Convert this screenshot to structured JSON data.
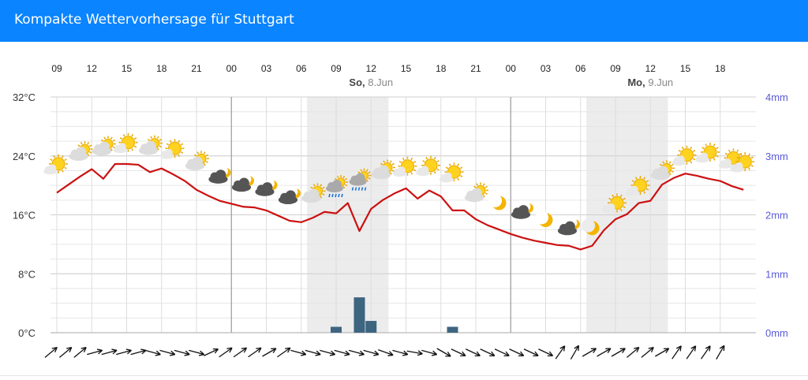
{
  "header": {
    "title": "Kompakte Wettervorhersage für Stuttgart"
  },
  "colors": {
    "header_bg": "#0a84ff",
    "temp_line": "#cc1111",
    "precip_bar": "#3d6580",
    "night_band": "#ececec",
    "grid": "#dddddd",
    "right_axis": "#5a5ad8"
  },
  "chart_data": {
    "type": "line",
    "hour_ticks": [
      "09",
      "12",
      "15",
      "18",
      "21",
      "00",
      "03",
      "06",
      "09",
      "12",
      "15",
      "18",
      "21",
      "00",
      "03",
      "06",
      "09",
      "12",
      "15",
      "18"
    ],
    "day_labels": [
      {
        "day": "So,",
        "date": "8.Jun",
        "tick_index": 9
      },
      {
        "day": "Mo,",
        "date": "9.Jun",
        "tick_index": 17
      }
    ],
    "left_axis": {
      "ticks": [
        "0°C",
        "8°C",
        "16°C",
        "24°C",
        "32°C"
      ],
      "ylim": [
        0,
        32
      ]
    },
    "right_axis": {
      "ticks": [
        "0mm",
        "1mm",
        "2mm",
        "3mm",
        "4mm"
      ],
      "ylim": [
        0,
        4
      ]
    },
    "grid": true,
    "night_bands": [
      [
        21.5,
        28.5
      ],
      [
        45.5,
        52.5
      ]
    ],
    "temperature": {
      "x": [
        0,
        1,
        2,
        3,
        4,
        5,
        6,
        7,
        8,
        9,
        10,
        11,
        12,
        13,
        14,
        15,
        16,
        17,
        18,
        19,
        20,
        21,
        22,
        23,
        24,
        25,
        26,
        27,
        28,
        29,
        30,
        31,
        32,
        33,
        34,
        35,
        36,
        37,
        38,
        39,
        40,
        41,
        42,
        43,
        44,
        45,
        46,
        47,
        48,
        49,
        50,
        51,
        52,
        53,
        54,
        55,
        56,
        57,
        58,
        59
      ],
      "values": [
        19.0,
        20.1,
        21.2,
        22.2,
        20.9,
        22.9,
        22.9,
        22.8,
        21.8,
        22.3,
        21.5,
        20.6,
        19.4,
        18.6,
        17.9,
        17.5,
        17.1,
        17.0,
        16.6,
        15.9,
        15.2,
        15.0,
        15.6,
        16.4,
        16.2,
        17.6,
        13.8,
        16.8,
        18.0,
        18.9,
        19.6,
        18.2,
        19.3,
        18.5,
        16.6,
        16.6,
        15.4,
        14.6,
        14.0,
        13.4,
        12.9,
        12.5,
        12.2,
        11.9,
        11.8,
        11.3,
        11.8,
        13.9,
        15.4,
        16.1,
        17.6,
        17.9,
        20.1,
        21.0,
        21.6,
        21.3,
        20.9,
        20.6,
        19.9,
        19.4
      ]
    },
    "precipitation": {
      "x": [
        24,
        26,
        27,
        34
      ],
      "values_mm": [
        0.1,
        0.6,
        0.2,
        0.1
      ]
    },
    "weather_icons": [
      {
        "x": 0,
        "icon": "sun-cloud",
        "temp": 22.7
      },
      {
        "x": 2,
        "icon": "cloud-sun",
        "temp": 24.5
      },
      {
        "x": 4,
        "icon": "cloud-sun",
        "temp": 25.2
      },
      {
        "x": 6,
        "icon": "sun-cloud",
        "temp": 25.6
      },
      {
        "x": 8,
        "icon": "cloud-sun",
        "temp": 25.3
      },
      {
        "x": 10,
        "icon": "sun-cloud",
        "temp": 24.8
      },
      {
        "x": 12,
        "icon": "cloud-sun",
        "temp": 23.2
      },
      {
        "x": 14,
        "icon": "dark-cloud-moon",
        "temp": 21.4
      },
      {
        "x": 16,
        "icon": "dark-cloud-moon",
        "temp": 20.3
      },
      {
        "x": 18,
        "icon": "dark-cloud-moon",
        "temp": 19.7
      },
      {
        "x": 20,
        "icon": "dark-cloud-moon",
        "temp": 18.6
      },
      {
        "x": 22,
        "icon": "cloud-sun",
        "temp": 18.8
      },
      {
        "x": 24,
        "icon": "rain-cloud-sun",
        "temp": 19.8
      },
      {
        "x": 26,
        "icon": "rain-cloud-sun",
        "temp": 20.7
      },
      {
        "x": 28,
        "icon": "cloud-sun",
        "temp": 22.0
      },
      {
        "x": 30,
        "icon": "sun-cloud",
        "temp": 22.4
      },
      {
        "x": 32,
        "icon": "sun-cloud",
        "temp": 22.5
      },
      {
        "x": 34,
        "icon": "sun-cloud",
        "temp": 21.6
      },
      {
        "x": 36,
        "icon": "cloud-sun",
        "temp": 18.9
      },
      {
        "x": 38,
        "icon": "moon",
        "temp": 17.6
      },
      {
        "x": 40,
        "icon": "dark-cloud-moon",
        "temp": 16.6
      },
      {
        "x": 42,
        "icon": "moon",
        "temp": 15.3
      },
      {
        "x": 44,
        "icon": "dark-cloud-moon",
        "temp": 14.4
      },
      {
        "x": 46,
        "icon": "moon",
        "temp": 14.2
      },
      {
        "x": 48,
        "icon": "sun-cloud",
        "temp": 17.4
      },
      {
        "x": 50,
        "icon": "sun-cloud",
        "temp": 19.8
      },
      {
        "x": 52,
        "icon": "cloud-sun",
        "temp": 21.9
      },
      {
        "x": 54,
        "icon": "sun-cloud",
        "temp": 23.9
      },
      {
        "x": 56,
        "icon": "sun-cloud",
        "temp": 24.3
      },
      {
        "x": 58,
        "icon": "sun-cloud",
        "temp": 23.5
      },
      {
        "x": 59,
        "icon": "sun-cloud",
        "temp": 23.0
      }
    ],
    "wind_direction_deg": [
      -40,
      -40,
      -40,
      -15,
      -15,
      -15,
      -15,
      15,
      15,
      15,
      15,
      -25,
      -35,
      -35,
      -35,
      -30,
      -35,
      15,
      15,
      15,
      15,
      15,
      15,
      20,
      15,
      10,
      15,
      30,
      25,
      25,
      25,
      25,
      25,
      25,
      25,
      -55,
      -60,
      -30,
      -30,
      -30,
      -40,
      -40,
      -30,
      -55,
      -55,
      -55,
      -60
    ]
  }
}
